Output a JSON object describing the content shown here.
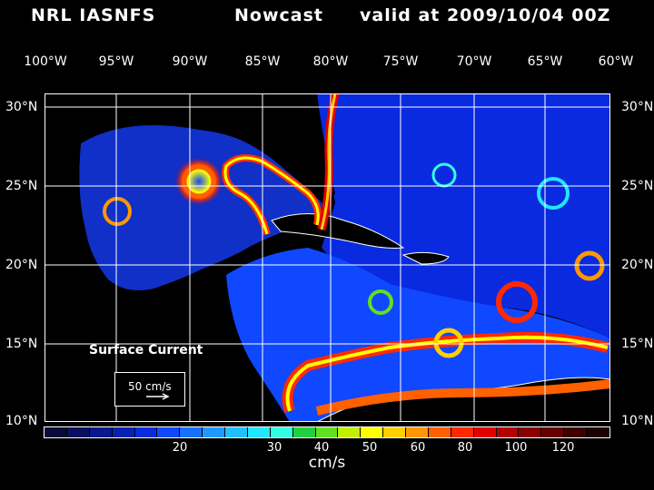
{
  "header": {
    "source": "NRL IASNFS",
    "product": "Nowcast",
    "valid": "valid at 2009/10/04 00Z"
  },
  "map": {
    "lon_labels": [
      "100°W",
      "95°W",
      "90°W",
      "85°W",
      "80°W",
      "75°W",
      "70°W",
      "65°W",
      "60°W"
    ],
    "lat_labels": [
      "30°N",
      "25°N",
      "20°N",
      "15°N",
      "10°N"
    ],
    "field": "Surface Current",
    "vector_scale": "50 cm/s"
  },
  "colorbar": {
    "units": "cm/s",
    "tick_labels": [
      "20",
      "30",
      "40",
      "50",
      "60",
      "80",
      "100",
      "120"
    ],
    "colors": [
      "#0a0a3c",
      "#0a1060",
      "#0a188c",
      "#0820b4",
      "#0a2ae0",
      "#1048ff",
      "#1870ff",
      "#2098ff",
      "#20c0ff",
      "#20e8ff",
      "#30ffe0",
      "#20d040",
      "#60e020",
      "#c0f000",
      "#ffff00",
      "#ffd000",
      "#ff9800",
      "#ff6000",
      "#ff2800",
      "#e00000",
      "#b40000",
      "#8a0000",
      "#640000",
      "#400000",
      "#200000"
    ]
  }
}
